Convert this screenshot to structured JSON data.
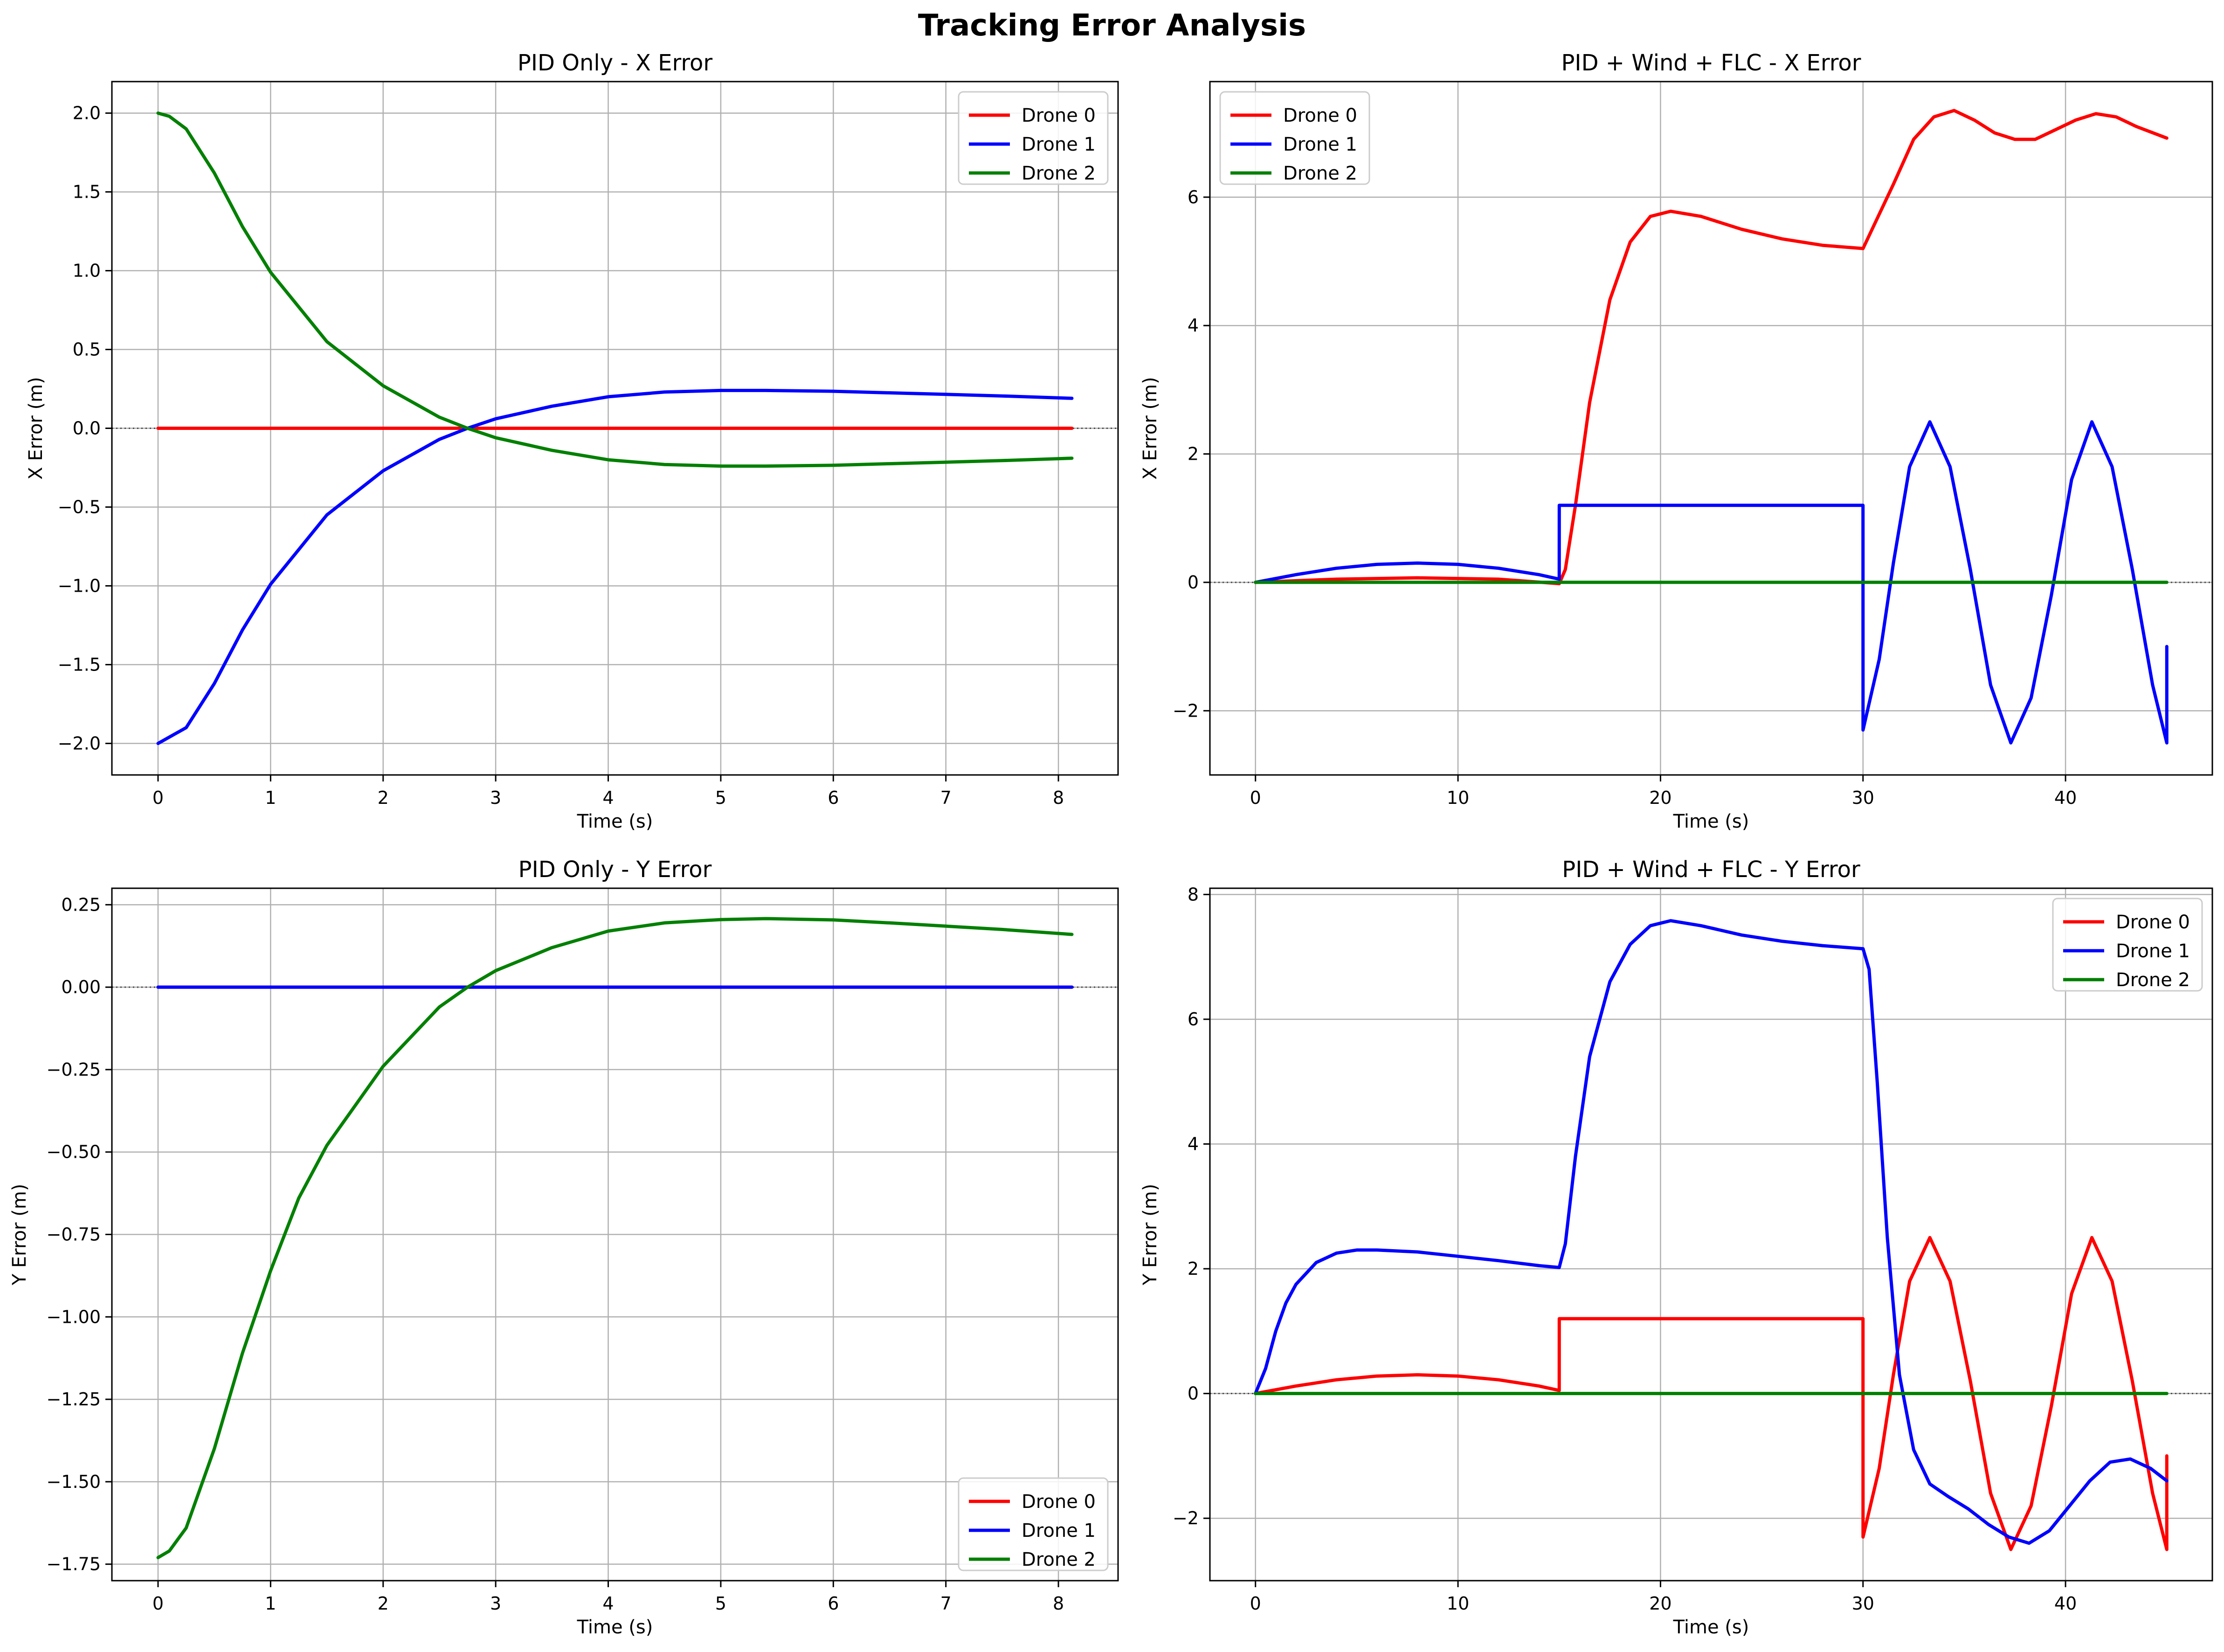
{
  "figure": {
    "title": "Tracking Error Analysis"
  },
  "chart_data": [
    {
      "type": "line",
      "title": "PID Only - X Error",
      "xlabel": "Time (s)",
      "ylabel": "X Error (m)",
      "xlim": [
        -0.41,
        8.53
      ],
      "ylim": [
        -2.2,
        2.2
      ],
      "xticks": [
        0,
        1,
        2,
        3,
        4,
        5,
        6,
        7,
        8
      ],
      "yticks": [
        -2.0,
        -1.5,
        -1.0,
        -0.5,
        0.0,
        0.5,
        1.0,
        1.5,
        2.0
      ],
      "ytick_decimals": 1,
      "grid": true,
      "zero_line": true,
      "legend": "upper-right",
      "series": [
        {
          "name": "Drone 0",
          "color": "#ff0000",
          "x": [
            0,
            1,
            2,
            3,
            4,
            5,
            6,
            7,
            8.12
          ],
          "y": [
            0,
            0,
            0,
            0,
            0,
            0,
            0,
            0,
            0
          ]
        },
        {
          "name": "Drone 1",
          "color": "#0000ff",
          "x": [
            0,
            0.25,
            0.5,
            0.75,
            1,
            1.5,
            2,
            2.5,
            2.75,
            3,
            3.5,
            4,
            4.5,
            5,
            5.4,
            6,
            6.5,
            7,
            7.5,
            8.12
          ],
          "y": [
            -2.0,
            -1.9,
            -1.62,
            -1.28,
            -0.99,
            -0.55,
            -0.27,
            -0.07,
            0.0,
            0.06,
            0.14,
            0.2,
            0.23,
            0.24,
            0.24,
            0.235,
            0.225,
            0.215,
            0.205,
            0.19
          ]
        },
        {
          "name": "Drone 2",
          "color": "#008000",
          "x": [
            0,
            0.1,
            0.25,
            0.5,
            0.75,
            1,
            1.5,
            2,
            2.5,
            2.75,
            3,
            3.5,
            4,
            4.5,
            5,
            5.4,
            6,
            6.5,
            7,
            7.5,
            8.12
          ],
          "y": [
            2.0,
            1.98,
            1.9,
            1.62,
            1.28,
            0.99,
            0.55,
            0.27,
            0.07,
            0.0,
            -0.06,
            -0.14,
            -0.2,
            -0.23,
            -0.24,
            -0.24,
            -0.235,
            -0.225,
            -0.215,
            -0.205,
            -0.19
          ]
        }
      ]
    },
    {
      "type": "line",
      "title": "PID + Wind + FLC - X Error",
      "xlabel": "Time (s)",
      "ylabel": "X Error (m)",
      "xlim": [
        -2.25,
        47.25
      ],
      "ylim": [
        -3.0,
        7.8
      ],
      "xticks": [
        0,
        10,
        20,
        30,
        40
      ],
      "yticks": [
        -2,
        0,
        2,
        4,
        6
      ],
      "ytick_decimals": 0,
      "grid": true,
      "zero_line": true,
      "legend": "upper-left",
      "series": [
        {
          "name": "Drone 0",
          "color": "#ff0000",
          "x": [
            0,
            4,
            8,
            12,
            15,
            15.3,
            15.8,
            16.5,
            17.5,
            18.5,
            19.5,
            20.5,
            22,
            24,
            26,
            28,
            30,
            30.6,
            31.5,
            32.5,
            33.5,
            34.5,
            35.5,
            36.5,
            37.5,
            38.5,
            39.5,
            40.5,
            41.5,
            42.5,
            43.5,
            45
          ],
          "y": [
            0,
            0.05,
            0.07,
            0.05,
            -0.02,
            0.2,
            1.2,
            2.8,
            4.4,
            5.3,
            5.7,
            5.78,
            5.7,
            5.5,
            5.35,
            5.25,
            5.2,
            5.6,
            6.2,
            6.9,
            7.25,
            7.35,
            7.2,
            7.0,
            6.9,
            6.9,
            7.05,
            7.2,
            7.3,
            7.25,
            7.1,
            6.92
          ]
        },
        {
          "name": "Drone 1",
          "color": "#0000ff",
          "x": [
            0,
            2,
            4,
            6,
            8,
            10,
            12,
            14,
            15,
            15.001,
            29.999,
            30,
            30.8,
            31.5,
            32.3,
            33.3,
            34.3,
            35.3,
            36.3,
            37.3,
            38.3,
            39.3,
            40.3,
            41.3,
            42.3,
            43.3,
            44.3,
            45,
            45.001
          ],
          "y": [
            0,
            0.12,
            0.22,
            0.28,
            0.3,
            0.28,
            0.22,
            0.12,
            0.05,
            1.2,
            1.2,
            -2.3,
            -1.2,
            0.3,
            1.8,
            2.5,
            1.8,
            0.2,
            -1.6,
            -2.5,
            -1.8,
            -0.2,
            1.6,
            2.5,
            1.8,
            0.2,
            -1.6,
            -2.5,
            -1.0
          ]
        },
        {
          "name": "Drone 2",
          "color": "#008000",
          "x": [
            0,
            45
          ],
          "y": [
            0,
            0
          ]
        }
      ]
    },
    {
      "type": "line",
      "title": "PID Only - Y Error",
      "xlabel": "Time (s)",
      "ylabel": "Y Error (m)",
      "xlim": [
        -0.41,
        8.53
      ],
      "ylim": [
        -1.8,
        0.3
      ],
      "xticks": [
        0,
        1,
        2,
        3,
        4,
        5,
        6,
        7,
        8
      ],
      "yticks": [
        -1.75,
        -1.5,
        -1.25,
        -1.0,
        -0.75,
        -0.5,
        -0.25,
        0.0,
        0.25
      ],
      "ytick_decimals": 2,
      "grid": true,
      "zero_line": true,
      "legend": "lower-right",
      "series": [
        {
          "name": "Drone 0",
          "color": "#ff0000",
          "x": [
            0,
            8.12
          ],
          "y": [
            0,
            0
          ]
        },
        {
          "name": "Drone 1",
          "color": "#0000ff",
          "x": [
            0,
            8.12
          ],
          "y": [
            0,
            0
          ]
        },
        {
          "name": "Drone 2",
          "color": "#008000",
          "x": [
            0,
            0.1,
            0.25,
            0.5,
            0.75,
            1,
            1.25,
            1.5,
            2,
            2.5,
            2.75,
            3,
            3.5,
            4,
            4.5,
            5,
            5.4,
            6,
            6.5,
            7,
            7.5,
            8.12
          ],
          "y": [
            -1.73,
            -1.71,
            -1.64,
            -1.4,
            -1.11,
            -0.86,
            -0.64,
            -0.48,
            -0.24,
            -0.06,
            0.0,
            0.05,
            0.12,
            0.17,
            0.195,
            0.205,
            0.208,
            0.204,
            0.195,
            0.185,
            0.175,
            0.16
          ]
        }
      ]
    },
    {
      "type": "line",
      "title": "PID + Wind + FLC - Y Error",
      "xlabel": "Time (s)",
      "ylabel": "Y Error (m)",
      "xlim": [
        -2.25,
        47.25
      ],
      "ylim": [
        -3.0,
        8.1
      ],
      "xticks": [
        0,
        10,
        20,
        30,
        40
      ],
      "yticks": [
        -2,
        0,
        2,
        4,
        6,
        8
      ],
      "ytick_decimals": 0,
      "grid": true,
      "zero_line": true,
      "legend": "upper-right",
      "series": [
        {
          "name": "Drone 0",
          "color": "#ff0000",
          "x": [
            0,
            2,
            4,
            6,
            8,
            10,
            12,
            14,
            15,
            15.001,
            29.999,
            30,
            30.8,
            31.5,
            32.3,
            33.3,
            34.3,
            35.3,
            36.3,
            37.3,
            38.3,
            39.3,
            40.3,
            41.3,
            42.3,
            43.3,
            44.3,
            45,
            45.001
          ],
          "y": [
            0,
            0.12,
            0.22,
            0.28,
            0.3,
            0.28,
            0.22,
            0.12,
            0.05,
            1.2,
            1.2,
            -2.3,
            -1.2,
            0.3,
            1.8,
            2.5,
            1.8,
            0.2,
            -1.6,
            -2.5,
            -1.8,
            -0.2,
            1.6,
            2.5,
            1.8,
            0.2,
            -1.6,
            -2.5,
            -1.0
          ]
        },
        {
          "name": "Drone 1",
          "color": "#0000ff",
          "x": [
            0,
            0.5,
            1,
            1.5,
            2,
            3,
            4,
            5,
            6,
            8,
            10,
            12,
            14,
            15,
            15.3,
            15.8,
            16.5,
            17.5,
            18.5,
            19.5,
            20.5,
            22,
            24,
            26,
            28,
            30,
            30.3,
            30.7,
            31.2,
            31.8,
            32.5,
            33.3,
            34.2,
            35.2,
            36.2,
            37.2,
            38.2,
            39.2,
            40.2,
            41.2,
            42.2,
            43.2,
            44.2,
            45
          ],
          "y": [
            0,
            0.4,
            1.0,
            1.45,
            1.75,
            2.1,
            2.25,
            2.3,
            2.3,
            2.27,
            2.2,
            2.13,
            2.05,
            2.02,
            2.4,
            3.8,
            5.4,
            6.6,
            7.2,
            7.5,
            7.58,
            7.5,
            7.35,
            7.25,
            7.18,
            7.13,
            6.8,
            5.0,
            2.5,
            0.3,
            -0.9,
            -1.45,
            -1.65,
            -1.85,
            -2.1,
            -2.3,
            -2.4,
            -2.2,
            -1.8,
            -1.4,
            -1.1,
            -1.05,
            -1.2,
            -1.4
          ]
        },
        {
          "name": "Drone 2",
          "color": "#008000",
          "x": [
            0,
            45
          ],
          "y": [
            0,
            0
          ]
        }
      ]
    }
  ]
}
